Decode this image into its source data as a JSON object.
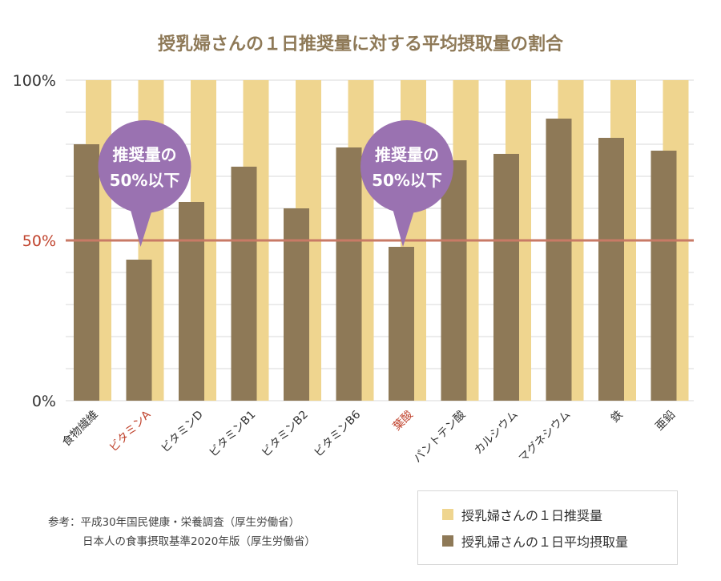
{
  "colors": {
    "recommended": "#efd58f",
    "intake": "#8e7957",
    "title": "#8e7957",
    "line50": "#c87a66",
    "bubble": "#9a72b1",
    "highlight": "#c0432d",
    "grid": "#d9d9d9",
    "text": "#333333"
  },
  "chart_data": {
    "type": "bar",
    "title": "授乳婦さんの１日推奨量に対する平均摂取量の割合",
    "ylim": [
      0,
      100
    ],
    "yticks": [
      {
        "value": 0,
        "label": "0%"
      },
      {
        "value": 50,
        "label": "50%"
      },
      {
        "value": 100,
        "label": "100%"
      }
    ],
    "grid": true,
    "legend_position": "bottom-right",
    "categories": [
      "食物繊維",
      "ビタミンA",
      "ビタミンD",
      "ビタミンB1",
      "ビタミンB2",
      "ビタミンB6",
      "葉酸",
      "パントテン酸",
      "カルシウム",
      "マグネシウム",
      "鉄",
      "亜鉛"
    ],
    "highlight_categories": [
      "ビタミンA",
      "葉酸"
    ],
    "series": [
      {
        "name": "授乳婦さんの１日推奨量",
        "values": [
          100,
          100,
          100,
          100,
          100,
          100,
          100,
          100,
          100,
          100,
          100,
          100
        ]
      },
      {
        "name": "授乳婦さんの１日平均摂取量",
        "values": [
          80,
          44,
          62,
          73,
          60,
          79,
          48,
          75,
          77,
          88,
          82,
          78
        ]
      }
    ],
    "reference_line": {
      "value": 50
    },
    "annotations": [
      {
        "category": "ビタミンA",
        "line1": "推奨量の",
        "line2": "50%以下"
      },
      {
        "category": "葉酸",
        "line1": "推奨量の",
        "line2": "50%以下"
      }
    ]
  },
  "notes": {
    "line1": "参考：平成30年国民健康・栄養調査（厚生労働省）",
    "line2": "日本人の食事摂取基準2020年版（厚生労働省）"
  }
}
